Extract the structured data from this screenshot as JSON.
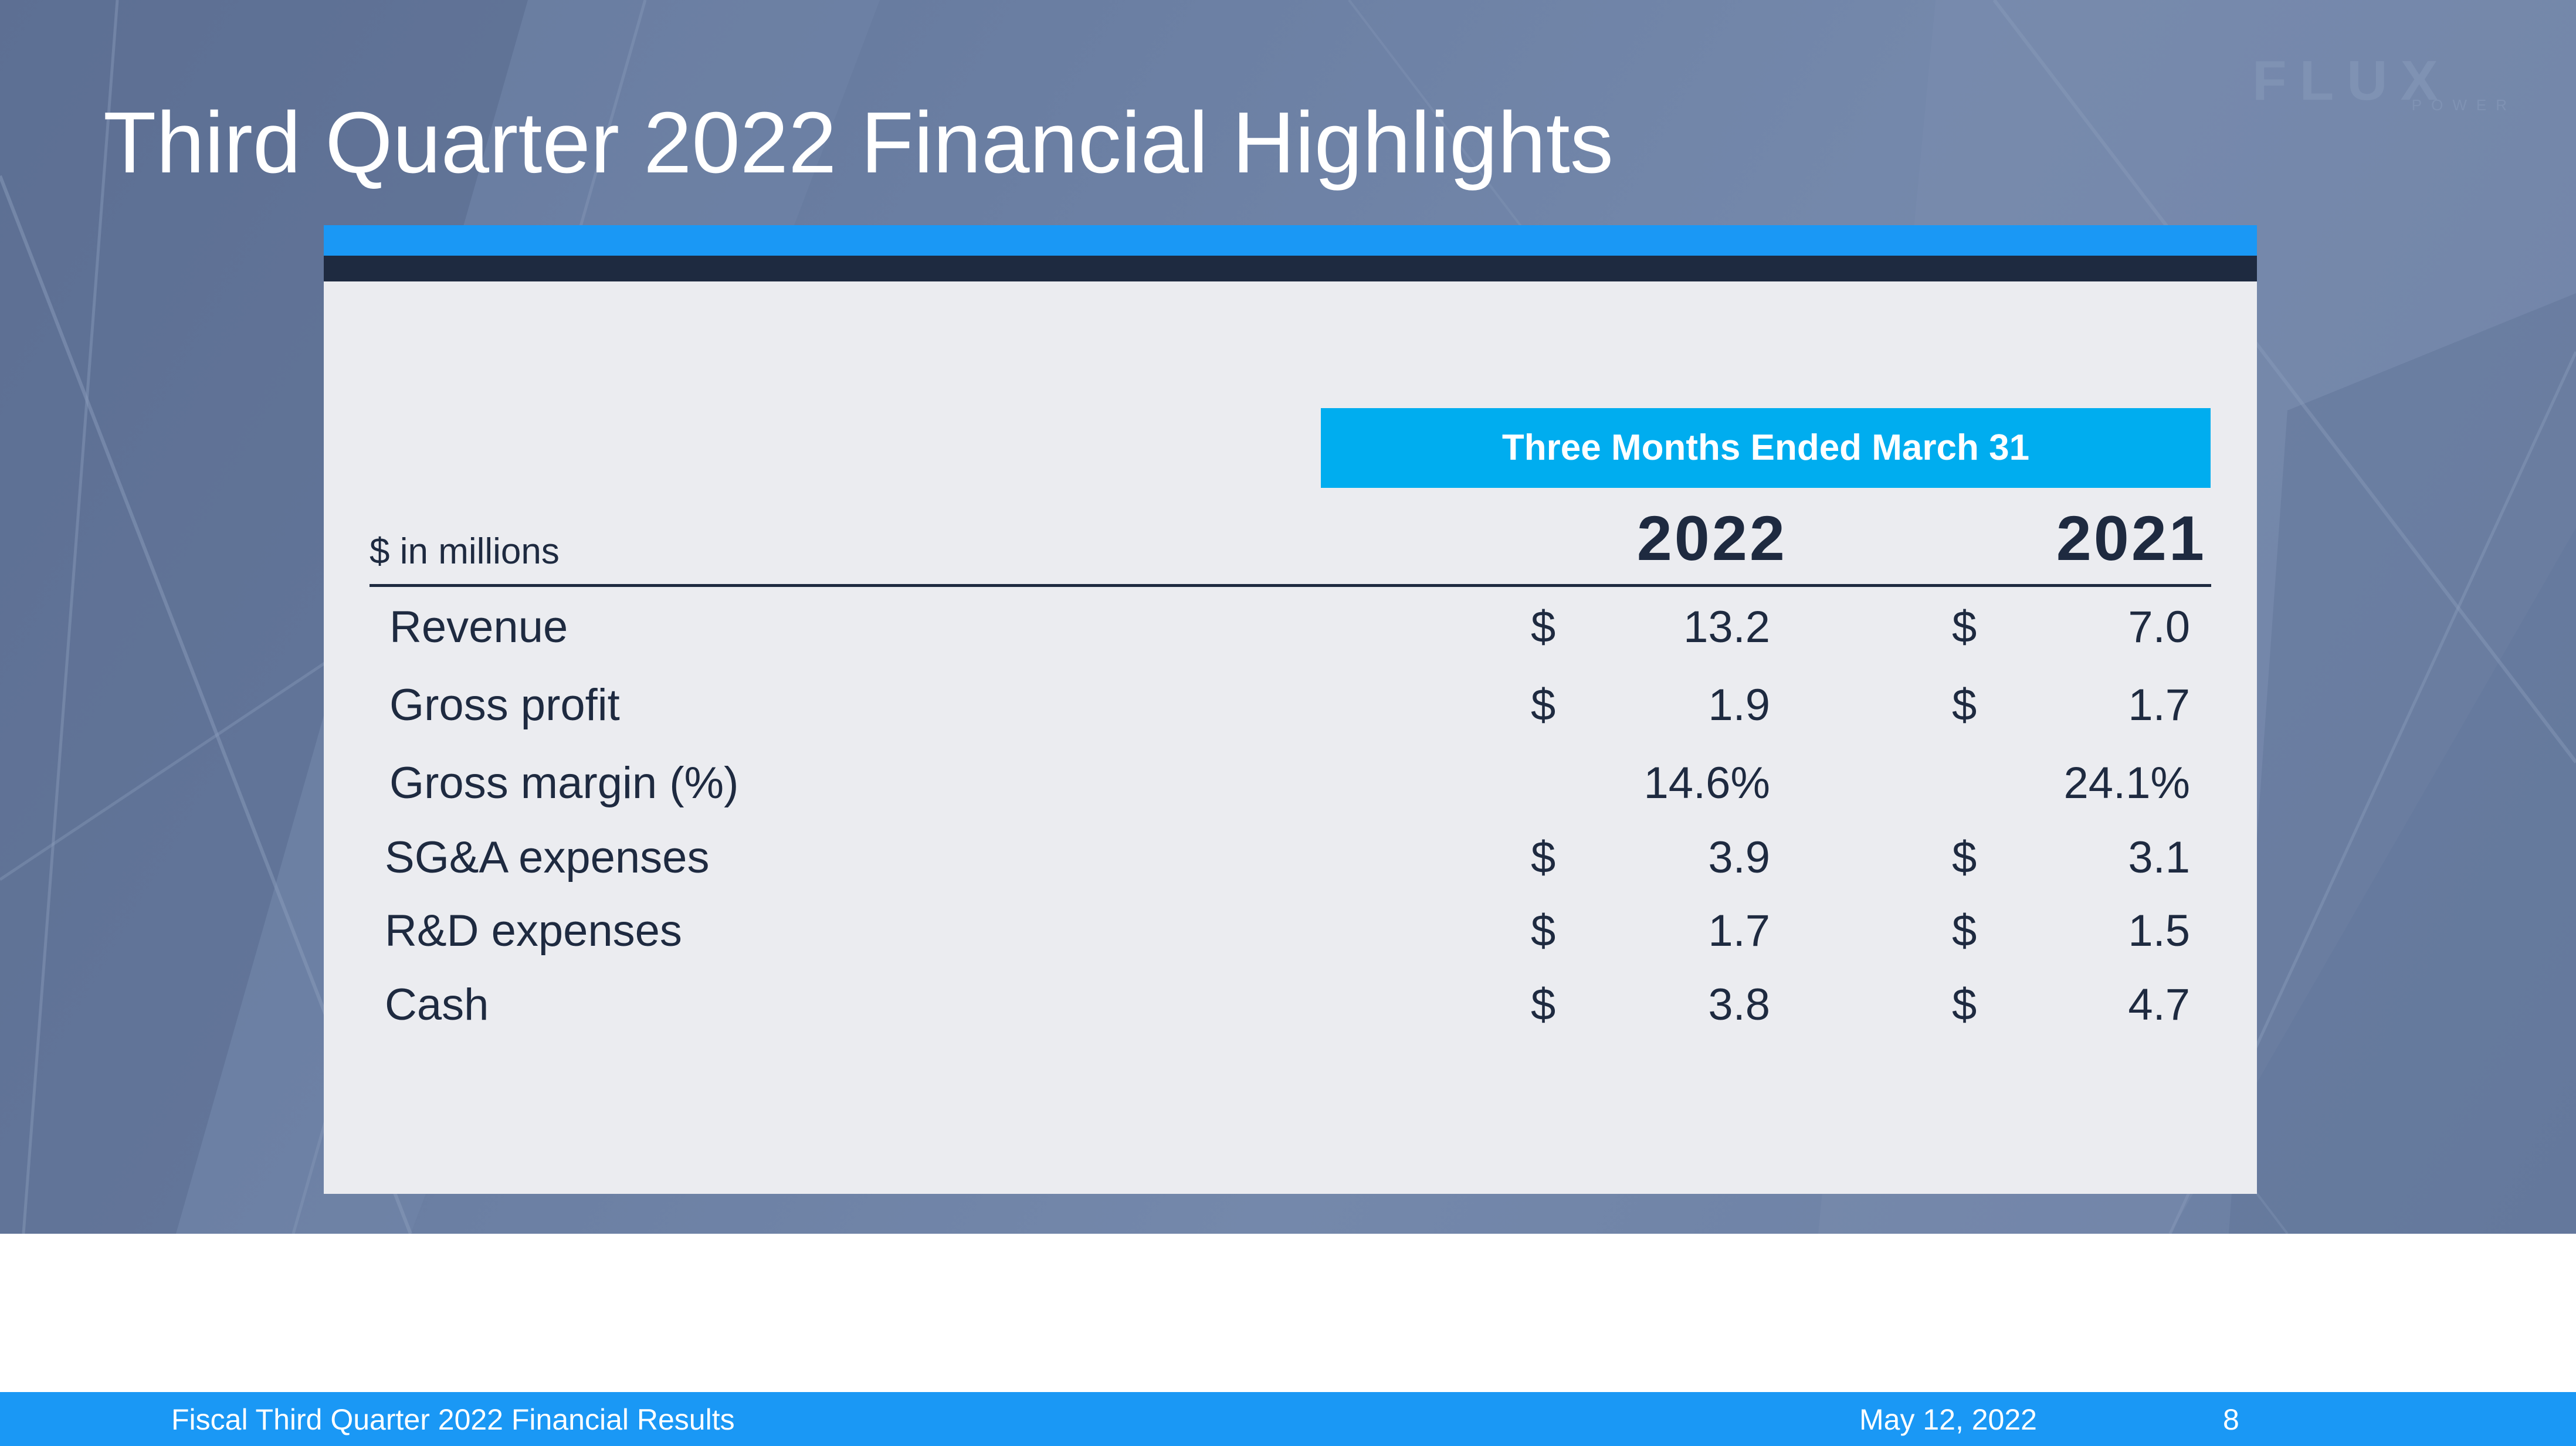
{
  "slide": {
    "title": "Third Quarter 2022 Financial Highlights",
    "logo": {
      "word": "FLUX",
      "subtitle": "POWER"
    }
  },
  "table": {
    "period_header": "Three Months Ended March 31",
    "units_label": "$ in millions",
    "years": [
      "2022",
      "2021"
    ],
    "rows": [
      {
        "label": "Revenue",
        "v2022": "13.2",
        "v2021": "7.0",
        "currency_2022": "$",
        "currency_2021": "$"
      },
      {
        "label": "Gross profit",
        "v2022": "1.9",
        "v2021": "1.7",
        "currency_2022": "$",
        "currency_2021": "$"
      },
      {
        "label": "Gross margin (%)",
        "v2022": "14.6%",
        "v2021": "24.1%",
        "currency_2022": "",
        "currency_2021": ""
      },
      {
        "label": "SG&A expenses",
        "v2022": "3.9",
        "v2021": "3.1",
        "currency_2022": "$",
        "currency_2021": "$"
      },
      {
        "label": "R&D expenses",
        "v2022": "1.7",
        "v2021": "1.5",
        "currency_2022": "$",
        "currency_2021": "$"
      },
      {
        "label": "Cash",
        "v2022": "3.8",
        "v2021": "4.7",
        "currency_2022": "$",
        "currency_2021": "$"
      }
    ]
  },
  "footer": {
    "left_text": "Fiscal Third Quarter 2022 Financial Results",
    "date": "May 12, 2022",
    "page_number": "8"
  },
  "colors": {
    "accent_blue": "#1a98f5",
    "header_cyan": "#00adef",
    "navy": "#1e2a40",
    "card_bg": "#ebecf0"
  }
}
